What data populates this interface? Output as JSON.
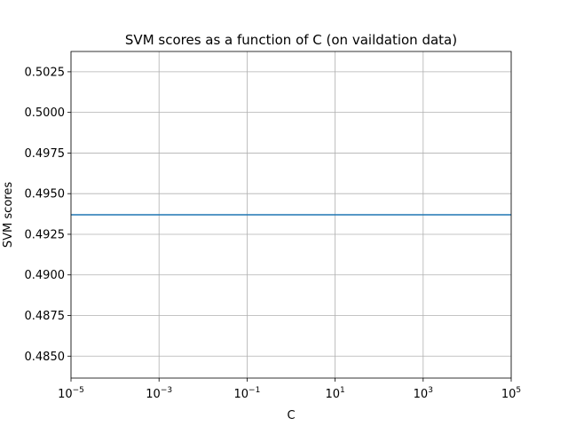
{
  "chart_data": {
    "type": "line",
    "title": "SVM scores as a function of C (on vaildation data)",
    "xlabel": "C",
    "ylabel": "SVM scores",
    "x_scale": "log",
    "xlim": [
      1e-05,
      100000
    ],
    "ylim": [
      0.48365,
      0.50375
    ],
    "grid": true,
    "x_ticks": [
      {
        "value": 1e-05,
        "base": "10",
        "exp": "−5"
      },
      {
        "value": 0.001,
        "base": "10",
        "exp": "−3"
      },
      {
        "value": 0.1,
        "base": "10",
        "exp": "−1"
      },
      {
        "value": 10,
        "base": "10",
        "exp": "1"
      },
      {
        "value": 1000,
        "base": "10",
        "exp": "3"
      },
      {
        "value": 100000,
        "base": "10",
        "exp": "5"
      }
    ],
    "y_ticks": [
      {
        "value": 0.485,
        "label": "0.4850"
      },
      {
        "value": 0.4875,
        "label": "0.4875"
      },
      {
        "value": 0.49,
        "label": "0.4900"
      },
      {
        "value": 0.4925,
        "label": "0.4925"
      },
      {
        "value": 0.495,
        "label": "0.4950"
      },
      {
        "value": 0.4975,
        "label": "0.4975"
      },
      {
        "value": 0.5,
        "label": "0.5000"
      },
      {
        "value": 0.5025,
        "label": "0.5025"
      }
    ],
    "series": [
      {
        "color": "#1f77b4",
        "x": [
          1e-05,
          0.0001,
          0.001,
          0.01,
          0.1,
          1,
          10,
          100,
          1000,
          10000,
          100000
        ],
        "y": [
          0.4937,
          0.4937,
          0.4937,
          0.4937,
          0.4937,
          0.4937,
          0.4937,
          0.4937,
          0.4937,
          0.4937,
          0.4937
        ]
      }
    ]
  }
}
